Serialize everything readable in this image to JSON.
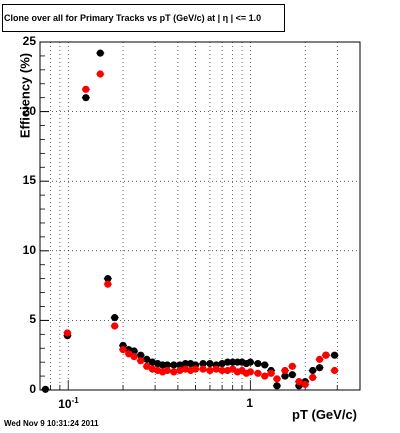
{
  "title": "Clone  over all for Primary Tracks vs pT (GeV/c) at |  η | <= 1.0",
  "footer": "Wed Nov  9 10:31:24 2011",
  "chart_data": {
    "type": "scatter",
    "xlabel": "pT (GeV/c)",
    "ylabel": "Efficiency (%)",
    "xscale": "log",
    "xlim": [
      0.07,
      4.0
    ],
    "ylim": [
      0,
      25
    ],
    "grid": true,
    "yticks": [
      "0",
      "5",
      "10",
      "15",
      "20",
      "25"
    ],
    "xtick_major": [
      {
        "base": "10",
        "exp": "-1"
      },
      {
        "base": "1",
        "exp": ""
      }
    ],
    "series": [
      {
        "color": "#000000",
        "points": [
          [
            0.075,
            0.05
          ],
          [
            0.099,
            3.9
          ],
          [
            0.125,
            21.0
          ],
          [
            0.15,
            24.2
          ],
          [
            0.165,
            8.0
          ],
          [
            0.18,
            5.2
          ],
          [
            0.2,
            3.2
          ],
          [
            0.215,
            2.9
          ],
          [
            0.23,
            2.8
          ],
          [
            0.25,
            2.5
          ],
          [
            0.27,
            2.2
          ],
          [
            0.29,
            2.0
          ],
          [
            0.31,
            1.9
          ],
          [
            0.33,
            1.8
          ],
          [
            0.35,
            1.8
          ],
          [
            0.38,
            1.8
          ],
          [
            0.41,
            1.8
          ],
          [
            0.44,
            1.9
          ],
          [
            0.47,
            1.9
          ],
          [
            0.5,
            1.8
          ],
          [
            0.55,
            1.9
          ],
          [
            0.6,
            1.9
          ],
          [
            0.65,
            1.8
          ],
          [
            0.7,
            1.9
          ],
          [
            0.75,
            2.0
          ],
          [
            0.8,
            2.0
          ],
          [
            0.85,
            2.0
          ],
          [
            0.9,
            2.0
          ],
          [
            0.95,
            1.9
          ],
          [
            1.0,
            2.0
          ],
          [
            1.1,
            1.9
          ],
          [
            1.2,
            1.8
          ],
          [
            1.3,
            1.4
          ],
          [
            1.4,
            0.3
          ],
          [
            1.55,
            1.0
          ],
          [
            1.7,
            1.1
          ],
          [
            1.85,
            0.3
          ],
          [
            2.0,
            0.6
          ],
          [
            2.2,
            1.4
          ],
          [
            2.4,
            1.6
          ],
          [
            2.6,
            2.5
          ],
          [
            2.9,
            2.5
          ]
        ]
      },
      {
        "color": "#ff0000",
        "points": [
          [
            0.099,
            4.1
          ],
          [
            0.125,
            21.6
          ],
          [
            0.15,
            22.7
          ],
          [
            0.165,
            7.6
          ],
          [
            0.18,
            4.6
          ],
          [
            0.2,
            2.9
          ],
          [
            0.215,
            2.6
          ],
          [
            0.23,
            2.4
          ],
          [
            0.25,
            2.1
          ],
          [
            0.27,
            1.7
          ],
          [
            0.29,
            1.5
          ],
          [
            0.31,
            1.4
          ],
          [
            0.33,
            1.3
          ],
          [
            0.35,
            1.4
          ],
          [
            0.38,
            1.3
          ],
          [
            0.41,
            1.4
          ],
          [
            0.44,
            1.5
          ],
          [
            0.47,
            1.4
          ],
          [
            0.5,
            1.5
          ],
          [
            0.55,
            1.5
          ],
          [
            0.6,
            1.4
          ],
          [
            0.65,
            1.5
          ],
          [
            0.7,
            1.4
          ],
          [
            0.75,
            1.4
          ],
          [
            0.8,
            1.5
          ],
          [
            0.85,
            1.3
          ],
          [
            0.9,
            1.4
          ],
          [
            0.95,
            1.2
          ],
          [
            1.0,
            1.3
          ],
          [
            1.1,
            1.2
          ],
          [
            1.2,
            1.0
          ],
          [
            1.3,
            1.2
          ],
          [
            1.4,
            0.8
          ],
          [
            1.55,
            1.4
          ],
          [
            1.7,
            1.7
          ],
          [
            1.85,
            0.6
          ],
          [
            2.0,
            0.4
          ],
          [
            2.2,
            0.9
          ],
          [
            2.4,
            2.2
          ],
          [
            2.6,
            2.5
          ],
          [
            2.9,
            1.4
          ]
        ]
      }
    ]
  }
}
